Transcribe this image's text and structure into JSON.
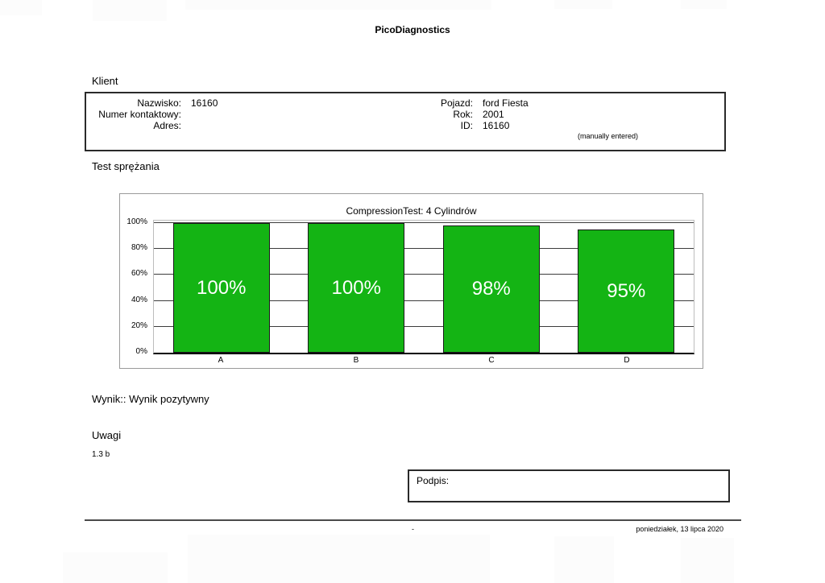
{
  "header": {
    "title": "PicoDiagnostics"
  },
  "client": {
    "heading": "Klient",
    "fields_left": [
      {
        "label": "Nazwisko:",
        "value": "16160"
      },
      {
        "label": "Numer kontaktowy:",
        "value": ""
      },
      {
        "label": "Adres:",
        "value": ""
      }
    ],
    "fields_right": [
      {
        "label": "Pojazd:",
        "value": "ford Fiesta"
      },
      {
        "label": "Rok:",
        "value": "2001"
      },
      {
        "label": "ID:",
        "value": "16160"
      }
    ],
    "note": "(manually entered)"
  },
  "compression_test": {
    "heading": "Test sprężania",
    "result_line": "Wynik:: Wynik pozytywny",
    "remarks_heading": "Uwagi",
    "remarks_text": "1.3 b"
  },
  "signature": {
    "label": "Podpis:"
  },
  "footer": {
    "separator": "-",
    "date": "poniedziałek, 13 lipca 2020"
  },
  "chart_data": {
    "type": "bar",
    "title": "CompressionTest: 4 Cylindrów",
    "categories": [
      "A",
      "B",
      "C",
      "D"
    ],
    "values": [
      100,
      100,
      98,
      95
    ],
    "value_labels": [
      "100%",
      "100%",
      "98%",
      "95%"
    ],
    "y_ticks": [
      {
        "label": "100%",
        "value": 100
      },
      {
        "label": "80%",
        "value": 80
      },
      {
        "label": "60%",
        "value": 60
      },
      {
        "label": "40%",
        "value": 40
      },
      {
        "label": "20%",
        "value": 20
      },
      {
        "label": "0%",
        "value": 0
      }
    ],
    "ylim": [
      0,
      100
    ],
    "grid": true,
    "legend": false,
    "bar_color": "#14b414",
    "bar_border_color": "#1a1a1a",
    "value_label_color": "#ffffff"
  }
}
